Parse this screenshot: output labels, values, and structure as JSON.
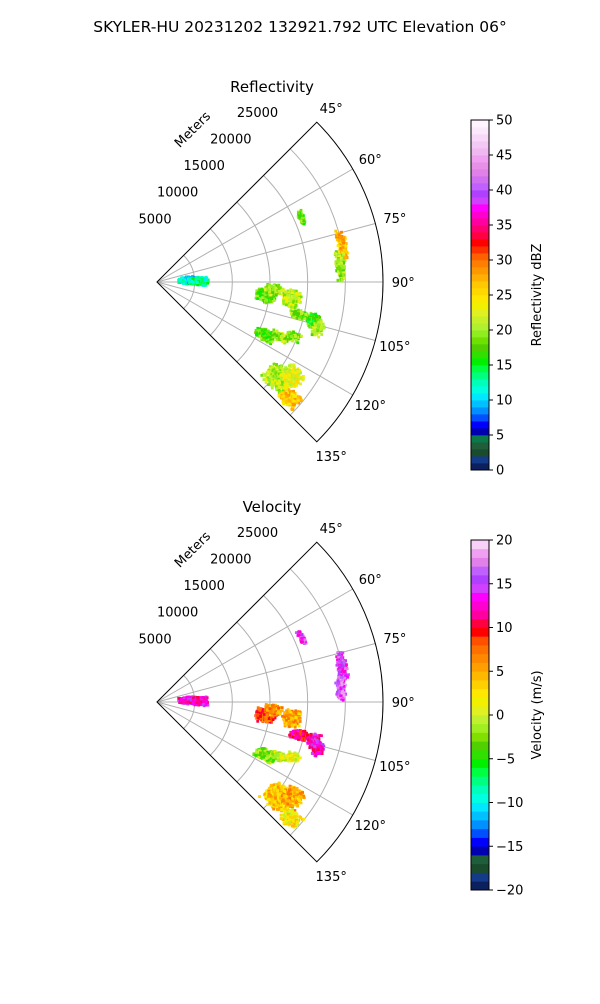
{
  "figure": {
    "title": "SKYLER-HU  20231202  132921.792 UTC Elevation 06°"
  },
  "chart_data": [
    {
      "type": "heatmap",
      "subtype": "polar-sector",
      "title": "Reflectivity",
      "radial_label": "Meters",
      "radial_ticks": [
        "5000",
        "10000",
        "15000",
        "20000",
        "25000"
      ],
      "radial_values": [
        5000,
        10000,
        15000,
        20000,
        25000
      ],
      "radial_range": [
        0,
        30000
      ],
      "angle_ticks": [
        "45°",
        "60°",
        "75°",
        "90°",
        "105°",
        "120°",
        "135°"
      ],
      "angle_values": [
        45,
        60,
        75,
        90,
        105,
        120,
        135
      ],
      "angle_range": [
        45,
        135
      ],
      "grid": true,
      "colorbar": {
        "label": "Reflectivity dBZ",
        "range": [
          0,
          50
        ],
        "ticks": [
          "0",
          "5",
          "10",
          "15",
          "20",
          "25",
          "30",
          "35",
          "40",
          "45",
          "50"
        ],
        "colors": [
          "#0c1f5e",
          "#143a8a",
          "#1a4c2c",
          "#1f5e3a",
          "#0b7a4a",
          "#0000b0",
          "#0000ff",
          "#0050ff",
          "#0090ff",
          "#00c0ff",
          "#00e8ff",
          "#00ffe0",
          "#00ffb8",
          "#00ff80",
          "#00ff40",
          "#00f000",
          "#30e000",
          "#50d000",
          "#70e000",
          "#90ee20",
          "#b0f030",
          "#c8f028",
          "#e0f020",
          "#f0f000",
          "#ffe800",
          "#ffd800",
          "#ffc800",
          "#ffb000",
          "#ff9800",
          "#ff8000",
          "#ff6000",
          "#ff3000",
          "#ff0000",
          "#ff0040",
          "#ff0070",
          "#ff00a0",
          "#ff00d0",
          "#ff00ff",
          "#d040ff",
          "#b040ff",
          "#c060ff",
          "#d070f0",
          "#e080e8",
          "#e890e8",
          "#f0a0f0",
          "#f0b8f0",
          "#f4c8f4",
          "#f8d8f8",
          "#fbe8fb",
          "#fff4ff"
        ]
      },
      "echoes": [
        {
          "r": 4000,
          "a": 87,
          "dr": 1200,
          "da": 7,
          "value": 11
        },
        {
          "r": 5500,
          "a": 89,
          "dr": 1400,
          "da": 6,
          "value": 13
        },
        {
          "r": 14500,
          "a": 97,
          "dr": 1500,
          "da": 4,
          "value": 18
        },
        {
          "r": 18000,
          "a": 97,
          "dr": 1400,
          "da": 4,
          "value": 21
        },
        {
          "r": 15500,
          "a": 94,
          "dr": 1200,
          "da": 3,
          "value": 20
        },
        {
          "r": 19500,
          "a": 103,
          "dr": 1500,
          "da": 2,
          "value": 19
        },
        {
          "r": 21500,
          "a": 104,
          "dr": 900,
          "da": 3,
          "value": 17
        },
        {
          "r": 22300,
          "a": 106,
          "dr": 800,
          "da": 3,
          "value": 20
        },
        {
          "r": 16000,
          "a": 116,
          "dr": 1600,
          "da": 3,
          "value": 18
        },
        {
          "r": 18000,
          "a": 114,
          "dr": 1300,
          "da": 2,
          "value": 20
        },
        {
          "r": 19500,
          "a": 112,
          "dr": 1000,
          "da": 2,
          "value": 19
        },
        {
          "r": 20500,
          "a": 128,
          "dr": 2000,
          "da": 5,
          "value": 21
        },
        {
          "r": 22000,
          "a": 125,
          "dr": 1500,
          "da": 4,
          "value": 23
        },
        {
          "r": 23500,
          "a": 131,
          "dr": 1500,
          "da": 3,
          "value": 26
        },
        {
          "r": 25000,
          "a": 79,
          "dr": 700,
          "da": 5,
          "value": 27
        },
        {
          "r": 24500,
          "a": 85,
          "dr": 700,
          "da": 5,
          "value": 20
        },
        {
          "r": 21000,
          "a": 66,
          "dr": 400,
          "da": 3,
          "value": 18
        }
      ]
    },
    {
      "type": "heatmap",
      "subtype": "polar-sector",
      "title": "Velocity",
      "radial_label": "Meters",
      "radial_ticks": [
        "5000",
        "10000",
        "15000",
        "20000",
        "25000"
      ],
      "radial_values": [
        5000,
        10000,
        15000,
        20000,
        25000
      ],
      "radial_range": [
        0,
        30000
      ],
      "angle_ticks": [
        "45°",
        "60°",
        "75°",
        "90°",
        "105°",
        "120°",
        "135°"
      ],
      "angle_values": [
        45,
        60,
        75,
        90,
        105,
        120,
        135
      ],
      "angle_range": [
        45,
        135
      ],
      "grid": true,
      "colorbar": {
        "label": "Velocity (m/s)",
        "range": [
          -20,
          20
        ],
        "ticks": [
          "−20",
          "−15",
          "−10",
          "−5",
          "0",
          "5",
          "10",
          "15",
          "20"
        ],
        "colors": [
          "#0c1f5e",
          "#143a8a",
          "#1a4c2c",
          "#1f5e3a",
          "#0000b0",
          "#0000ff",
          "#0050ff",
          "#0090ff",
          "#00c0ff",
          "#00e8ff",
          "#00ffe0",
          "#00ffb8",
          "#00ff80",
          "#00ff40",
          "#00f000",
          "#30e000",
          "#50d000",
          "#80e000",
          "#a0ee20",
          "#c0f030",
          "#e0f020",
          "#f0f000",
          "#ffe800",
          "#ffd000",
          "#ffb800",
          "#ffa000",
          "#ff8800",
          "#ff7000",
          "#ff5000",
          "#ff0000",
          "#ff0040",
          "#ff00a0",
          "#ff00d0",
          "#ff00ff",
          "#d040ff",
          "#b040ff",
          "#c060ff",
          "#e080e8",
          "#f0a0f0",
          "#f8d0f8"
        ]
      },
      "echoes": [
        {
          "r": 4000,
          "a": 87,
          "dr": 1200,
          "da": 7,
          "value": 13
        },
        {
          "r": 5500,
          "a": 89,
          "dr": 1400,
          "da": 6,
          "value": 13
        },
        {
          "r": 14500,
          "a": 97,
          "dr": 1500,
          "da": 4,
          "value": 8
        },
        {
          "r": 18000,
          "a": 97,
          "dr": 1400,
          "da": 4,
          "value": 5
        },
        {
          "r": 15500,
          "a": 94,
          "dr": 1200,
          "da": 3,
          "value": 6
        },
        {
          "r": 19500,
          "a": 103,
          "dr": 1500,
          "da": 2,
          "value": 11
        },
        {
          "r": 21500,
          "a": 104,
          "dr": 900,
          "da": 3,
          "value": 13
        },
        {
          "r": 22300,
          "a": 106,
          "dr": 800,
          "da": 3,
          "value": 13
        },
        {
          "r": 16000,
          "a": 116,
          "dr": 1600,
          "da": 3,
          "value": -2
        },
        {
          "r": 18000,
          "a": 114,
          "dr": 1300,
          "da": 2,
          "value": 0
        },
        {
          "r": 19500,
          "a": 112,
          "dr": 1000,
          "da": 2,
          "value": 1
        },
        {
          "r": 20500,
          "a": 128,
          "dr": 2000,
          "da": 5,
          "value": 4
        },
        {
          "r": 22000,
          "a": 125,
          "dr": 1500,
          "da": 4,
          "value": 5
        },
        {
          "r": 23500,
          "a": 131,
          "dr": 1500,
          "da": 3,
          "value": 2
        },
        {
          "r": 25000,
          "a": 79,
          "dr": 700,
          "da": 5,
          "value": 15
        },
        {
          "r": 24500,
          "a": 85,
          "dr": 700,
          "da": 5,
          "value": 16
        },
        {
          "r": 21000,
          "a": 66,
          "dr": 400,
          "da": 3,
          "value": 15
        }
      ]
    }
  ]
}
